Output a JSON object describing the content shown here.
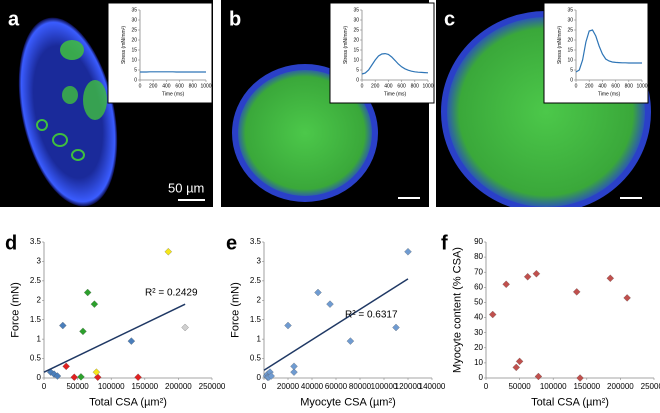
{
  "scale_bar": "50 µm",
  "chart_data": [
    {
      "type": "line",
      "label": "a",
      "xlabel": "Time (ms)",
      "ylabel": "Stress (mN/mm²)",
      "color": "#2e75b6",
      "x": [
        0,
        50,
        100,
        150,
        200,
        250,
        300,
        350,
        400,
        450,
        500,
        550,
        600,
        650,
        700,
        750,
        800,
        850,
        900,
        950,
        1000
      ],
      "values": [
        4,
        4,
        4,
        4.1,
        4.1,
        4.1,
        4.1,
        4.1,
        4.1,
        4.1,
        4.1,
        4,
        4,
        4,
        4,
        4,
        4,
        4,
        4,
        4,
        4
      ],
      "xlim": [
        0,
        1000
      ],
      "xticks": [
        0,
        200,
        400,
        600,
        800,
        1000
      ],
      "ylim": [
        0,
        35
      ],
      "yticks": [
        0,
        5,
        10,
        15,
        20,
        25,
        30,
        35
      ]
    },
    {
      "type": "line",
      "label": "b",
      "xlabel": "Time (ms)",
      "ylabel": "Stress (mN/mm²)",
      "color": "#2e75b6",
      "x": [
        0,
        50,
        100,
        150,
        200,
        250,
        300,
        350,
        400,
        450,
        500,
        550,
        600,
        650,
        700,
        750,
        800,
        850,
        900,
        950,
        1000
      ],
      "values": [
        3,
        3.5,
        5,
        7.5,
        10,
        12,
        13,
        13.2,
        12.8,
        11.5,
        9.8,
        8,
        6.6,
        5.6,
        4.9,
        4.4,
        4.1,
        3.9,
        3.8,
        3.7,
        3.6
      ],
      "xlim": [
        0,
        1000
      ],
      "xticks": [
        0,
        200,
        400,
        600,
        800,
        1000
      ],
      "ylim": [
        0,
        35
      ],
      "yticks": [
        0,
        5,
        10,
        15,
        20,
        25,
        30,
        35
      ]
    },
    {
      "type": "line",
      "label": "c",
      "xlabel": "Time (ms)",
      "ylabel": "Stress (mN/mm²)",
      "color": "#2e75b6",
      "x": [
        0,
        50,
        100,
        150,
        200,
        250,
        300,
        350,
        400,
        450,
        500,
        550,
        600,
        650,
        700,
        750,
        800,
        850,
        900,
        950,
        1000
      ],
      "values": [
        4,
        5,
        10,
        19,
        24.5,
        25,
        22,
        17,
        13,
        10.5,
        9.5,
        9,
        8.8,
        8.7,
        8.6,
        8.6,
        8.5,
        8.5,
        8.5,
        8.5,
        8.5
      ],
      "xlim": [
        0,
        1000
      ],
      "xticks": [
        0,
        200,
        400,
        600,
        800,
        1000
      ],
      "ylim": [
        0,
        35
      ],
      "yticks": [
        0,
        5,
        10,
        15,
        20,
        25,
        30,
        35
      ]
    },
    {
      "type": "scatter",
      "label": "d",
      "xlabel": "Total CSA (µm²)",
      "ylabel": "Force (mN)",
      "annotation": "R² = 0.2429",
      "series": [
        {
          "color": "#4a7ebb",
          "x": [
            10000,
            15000,
            20000,
            28000,
            130000
          ],
          "values": [
            0.15,
            0.1,
            0.05,
            1.35,
            0.95
          ]
        },
        {
          "color": "#e02020",
          "x": [
            33000,
            45000,
            80000,
            140000
          ],
          "values": [
            0.3,
            0.02,
            0.02,
            0.02
          ]
        },
        {
          "color": "#2ca02c",
          "x": [
            55000,
            58000,
            65000,
            75000
          ],
          "values": [
            0.03,
            1.2,
            2.2,
            1.9
          ]
        },
        {
          "color": "#f5e61a",
          "x": [
            78000,
            185000
          ],
          "values": [
            0.15,
            3.25
          ]
        },
        {
          "color": "#d0d0d0",
          "x": [
            210000
          ],
          "values": [
            1.3
          ]
        }
      ],
      "trendline": {
        "color": "#1f3864",
        "x": [
          0,
          210000
        ],
        "values": [
          0.15,
          1.9
        ]
      },
      "xlim": [
        0,
        250000
      ],
      "xticks": [
        0,
        50000,
        100000,
        150000,
        200000,
        250000
      ],
      "ylim": [
        0,
        3.5
      ],
      "yticks": [
        0,
        0.5,
        1,
        1.5,
        2,
        2.5,
        3,
        3.5
      ]
    },
    {
      "type": "scatter",
      "label": "e",
      "xlabel": "Myocyte CSA (µm²)",
      "ylabel": "Force (mN)",
      "annotation": "R² = 0.6317",
      "series": [
        {
          "color": "#6f9bd1",
          "x": [
            2000,
            3000,
            3000,
            4000,
            5000,
            6000,
            20000,
            25000,
            25000,
            45000,
            55000,
            72000,
            110000,
            120000
          ],
          "values": [
            0.05,
            0.1,
            0.02,
            0.02,
            0.15,
            0.05,
            1.35,
            0.15,
            0.3,
            2.2,
            1.9,
            0.95,
            1.3,
            3.25
          ]
        }
      ],
      "trendline": {
        "color": "#1f3864",
        "x": [
          0,
          120000
        ],
        "values": [
          0.2,
          2.55
        ]
      },
      "xlim": [
        0,
        140000
      ],
      "xticks": [
        0,
        20000,
        40000,
        60000,
        80000,
        100000,
        120000,
        140000
      ],
      "ylim": [
        0,
        3.5
      ],
      "yticks": [
        0,
        0.5,
        1,
        1.5,
        2,
        2.5,
        3,
        3.5
      ]
    },
    {
      "type": "scatter",
      "label": "f",
      "xlabel": "Total CSA (µm²)",
      "ylabel": "Myocyte content (% CSA)",
      "series": [
        {
          "color": "#c0504d",
          "x": [
            10000,
            30000,
            45000,
            50000,
            62000,
            75000,
            78000,
            135000,
            140000,
            185000,
            210000
          ],
          "values": [
            42,
            62,
            7,
            11,
            67,
            69,
            1,
            57,
            0,
            66,
            53
          ]
        }
      ],
      "xlim": [
        0,
        250000
      ],
      "xticks": [
        0,
        50000,
        100000,
        150000,
        200000,
        250000
      ],
      "ylim": [
        0,
        90
      ],
      "yticks": [
        0,
        10,
        20,
        30,
        40,
        50,
        60,
        70,
        80,
        90
      ]
    }
  ]
}
